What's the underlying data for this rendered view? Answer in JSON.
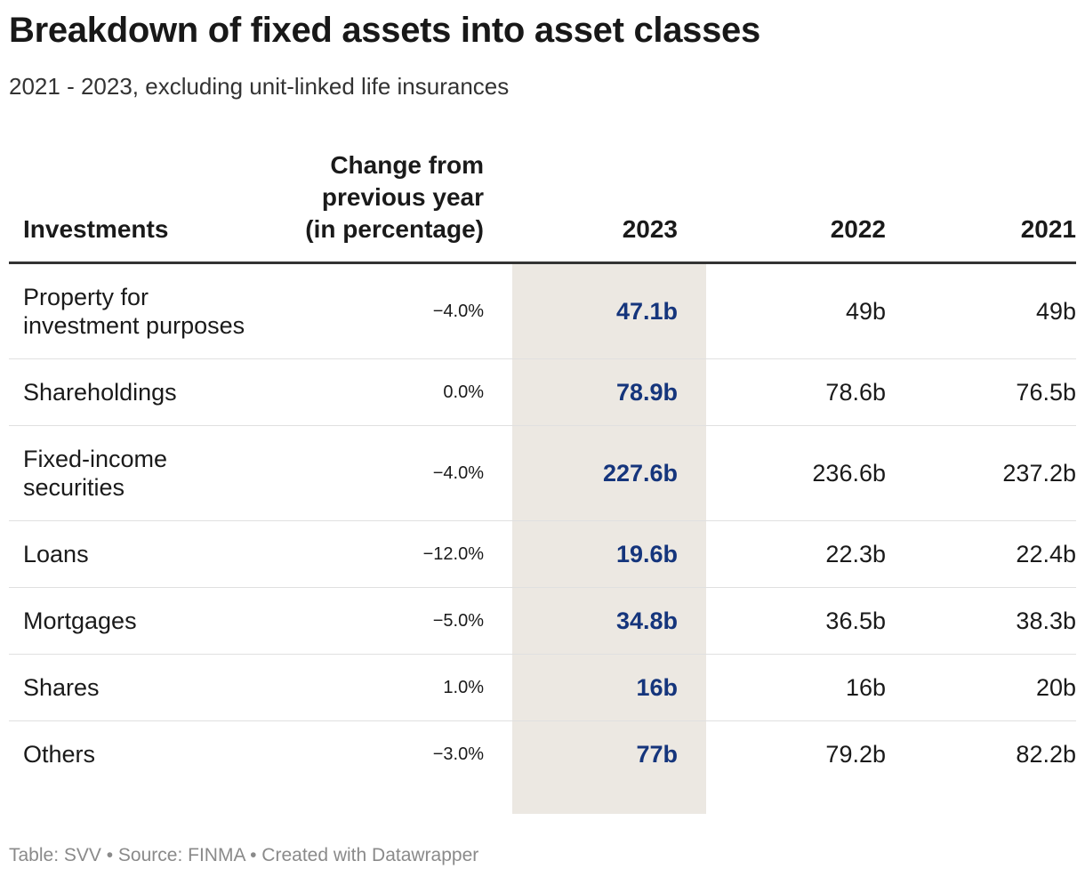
{
  "title": "Breakdown of fixed assets into asset classes",
  "subtitle": "2021 - 2023, excluding unit-linked life insurances",
  "footer": "Table: SVV • Source: FINMA • Created with Datawrapper",
  "colors": {
    "highlight_column_bg": "#ece8e2",
    "highlight_text": "#15357c",
    "footer_text": "#8a8a8a"
  },
  "chart_data": {
    "type": "table",
    "columns": [
      "Investments",
      "Change from previous year (in percentage)",
      "2023",
      "2022",
      "2021"
    ],
    "header_lines": {
      "change": [
        "Change from",
        "previous year",
        "(in percentage)"
      ]
    },
    "rows": [
      {
        "investment": "Property for investment purposes",
        "change": "−4.0%",
        "y2023": "47.1b",
        "y2022": "49b",
        "y2021": "49b"
      },
      {
        "investment": "Shareholdings",
        "change": "0.0%",
        "y2023": "78.9b",
        "y2022": "78.6b",
        "y2021": "76.5b"
      },
      {
        "investment": "Fixed-income securities",
        "change": "−4.0%",
        "y2023": "227.6b",
        "y2022": "236.6b",
        "y2021": "237.2b"
      },
      {
        "investment": "Loans",
        "change": "−12.0%",
        "y2023": "19.6b",
        "y2022": "22.3b",
        "y2021": "22.4b"
      },
      {
        "investment": "Mortgages",
        "change": "−5.0%",
        "y2023": "34.8b",
        "y2022": "36.5b",
        "y2021": "38.3b"
      },
      {
        "investment": "Shares",
        "change": "1.0%",
        "y2023": "16b",
        "y2022": "16b",
        "y2021": "20b"
      },
      {
        "investment": "Others",
        "change": "−3.0%",
        "y2023": "77b",
        "y2022": "79.2b",
        "y2021": "82.2b"
      }
    ],
    "highlighted_column": "2023"
  }
}
